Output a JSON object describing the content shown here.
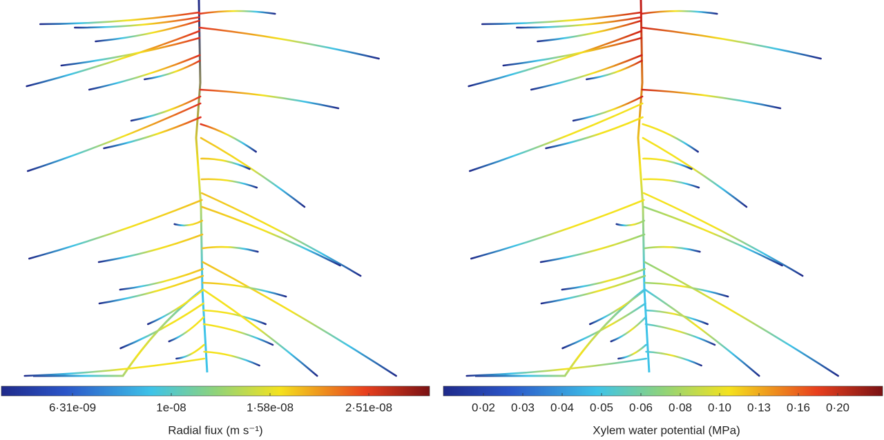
{
  "panels": [
    {
      "colorbar": {
        "ticks": [
          "6·31e-09",
          "1e-08",
          "1·58e-08",
          "2·51e-08"
        ],
        "label": "Radial fiux (m s⁻¹)"
      }
    },
    {
      "colorbar": {
        "ticks": [
          "0·02",
          "0·03",
          "0·04",
          "0·05",
          "0·06",
          "0·08",
          "0·10",
          "0·13",
          "0·16",
          "0·20"
        ],
        "label": "Xylem water potential (MPa)"
      }
    }
  ]
}
